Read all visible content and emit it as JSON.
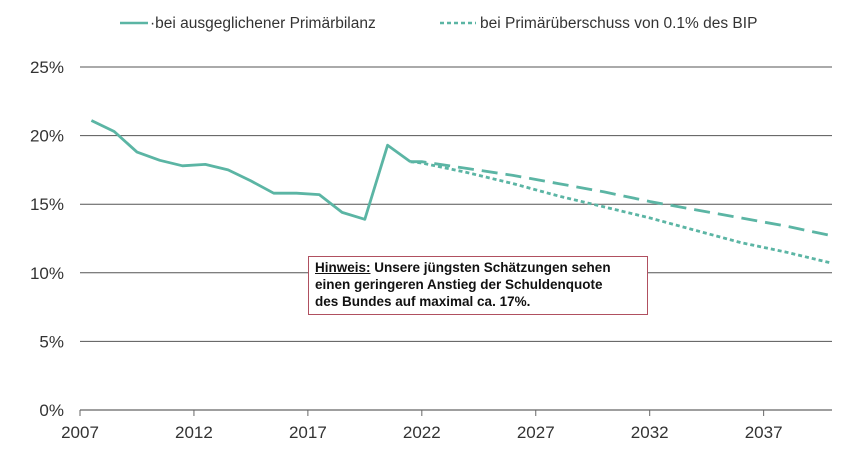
{
  "chart_data": {
    "type": "line",
    "x_ticks": [
      "2007",
      "2012",
      "2017",
      "2022",
      "2027",
      "2032",
      "2037"
    ],
    "y_ticks": [
      "0%",
      "5%",
      "10%",
      "15%",
      "20%",
      "25%"
    ],
    "xlim": [
      2007,
      2040
    ],
    "ylim": [
      0,
      25
    ],
    "grid": "horizontal",
    "legend_position": "top",
    "series": [
      {
        "name": "·bei ausgeglichener Primärbilanz",
        "style": "solid",
        "color": "#5bb5a4",
        "x": [
          2007.5,
          2008.5,
          2009.5,
          2010.5,
          2011.5,
          2012.5,
          2013.5,
          2014.5,
          2015.5,
          2016.5,
          2017.5,
          2018.5,
          2019.5,
          2020.5,
          2021.5,
          2022,
          2024,
          2026,
          2028,
          2030,
          2032,
          2034,
          2036,
          2038,
          2040
        ],
        "y": [
          21.1,
          20.3,
          18.8,
          18.2,
          17.8,
          17.9,
          17.5,
          16.7,
          15.8,
          15.8,
          15.7,
          14.4,
          13.9,
          19.3,
          18.1,
          18.1,
          17.6,
          17.1,
          16.5,
          15.9,
          15.2,
          14.6,
          14.0,
          13.4,
          12.7
        ]
      },
      {
        "name": "bei Primärüberschuss von 0.1% des BIP",
        "style": "dotted",
        "color": "#5bb5a4",
        "x": [
          2021.5,
          2022,
          2024,
          2026,
          2028,
          2030,
          2032,
          2034,
          2036,
          2038,
          2040
        ],
        "y": [
          18.1,
          18.0,
          17.3,
          16.5,
          15.6,
          14.8,
          14.0,
          13.1,
          12.2,
          11.5,
          10.7
        ]
      }
    ]
  },
  "annotation": {
    "label": "Hinweis:",
    "line1": " Unsere jüngsten Schätzungen sehen",
    "line2": "einen geringeren Anstieg der Schuldenquote",
    "line3": "des Bundes auf maximal ca. 17%."
  }
}
